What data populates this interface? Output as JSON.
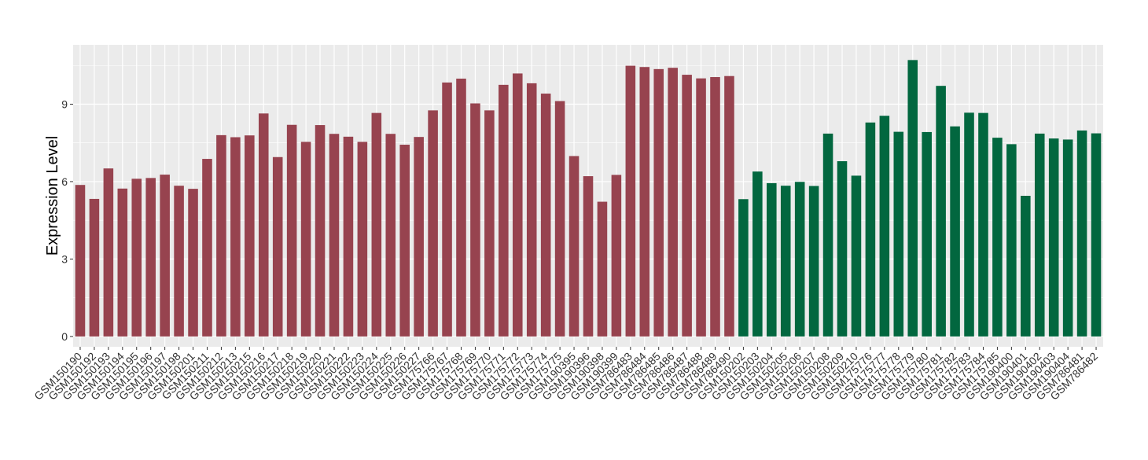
{
  "chart_data": {
    "type": "bar",
    "title": "",
    "xlabel": "",
    "ylabel": "Expression Level",
    "ylim": [
      -0.4,
      11.3
    ],
    "yticks": [
      0,
      3,
      6,
      9
    ],
    "grid": true,
    "legend": "none",
    "colors": {
      "group1": "#97434F",
      "group2": "#02673F",
      "panel": "#EBEBEB",
      "grid": "#FFFFFF"
    },
    "categories": [
      "GSM150190",
      "GSM150192",
      "GSM150193",
      "GSM150194",
      "GSM150195",
      "GSM150196",
      "GSM150197",
      "GSM150198",
      "GSM150201",
      "GSM150211",
      "GSM150212",
      "GSM150213",
      "GSM150215",
      "GSM150216",
      "GSM150217",
      "GSM150218",
      "GSM150219",
      "GSM150220",
      "GSM150221",
      "GSM150222",
      "GSM150223",
      "GSM150224",
      "GSM150225",
      "GSM150226",
      "GSM150227",
      "GSM175766",
      "GSM175767",
      "GSM175768",
      "GSM175769",
      "GSM175770",
      "GSM175771",
      "GSM175772",
      "GSM175773",
      "GSM175774",
      "GSM175775",
      "GSM190395",
      "GSM190396",
      "GSM190398",
      "GSM190399",
      "GSM786483",
      "GSM786484",
      "GSM786485",
      "GSM786486",
      "GSM786487",
      "GSM786488",
      "GSM786489",
      "GSM786490",
      "GSM150202",
      "GSM150203",
      "GSM150204",
      "GSM150205",
      "GSM150206",
      "GSM150207",
      "GSM150208",
      "GSM150209",
      "GSM150210",
      "GSM175776",
      "GSM175777",
      "GSM175778",
      "GSM175779",
      "GSM175780",
      "GSM175781",
      "GSM175782",
      "GSM175783",
      "GSM175784",
      "GSM175785",
      "GSM190400",
      "GSM190401",
      "GSM190402",
      "GSM190403",
      "GSM190404",
      "GSM786481",
      "GSM786482"
    ],
    "values": [
      5.87,
      5.33,
      6.51,
      5.73,
      6.11,
      6.14,
      6.27,
      5.84,
      5.72,
      6.88,
      7.8,
      7.72,
      7.79,
      8.64,
      6.95,
      8.2,
      7.54,
      8.19,
      7.85,
      7.74,
      7.54,
      8.66,
      7.85,
      7.43,
      7.73,
      8.76,
      9.84,
      9.99,
      9.03,
      8.76,
      9.75,
      10.19,
      9.81,
      9.41,
      9.12,
      6.99,
      6.21,
      5.22,
      6.26,
      10.49,
      10.44,
      10.36,
      10.41,
      10.14,
      10.0,
      10.05,
      10.09,
      5.32,
      6.39,
      5.94,
      5.84,
      5.99,
      5.83,
      7.86,
      6.79,
      6.23,
      8.29,
      8.55,
      7.93,
      10.71,
      7.92,
      9.71,
      8.14,
      8.67,
      8.66,
      7.7,
      7.45,
      5.45,
      7.86,
      7.67,
      7.63,
      7.98,
      7.87
    ],
    "groups": [
      "group1",
      "group1",
      "group1",
      "group1",
      "group1",
      "group1",
      "group1",
      "group1",
      "group1",
      "group1",
      "group1",
      "group1",
      "group1",
      "group1",
      "group1",
      "group1",
      "group1",
      "group1",
      "group1",
      "group1",
      "group1",
      "group1",
      "group1",
      "group1",
      "group1",
      "group1",
      "group1",
      "group1",
      "group1",
      "group1",
      "group1",
      "group1",
      "group1",
      "group1",
      "group1",
      "group1",
      "group1",
      "group1",
      "group1",
      "group1",
      "group1",
      "group1",
      "group1",
      "group1",
      "group1",
      "group1",
      "group1",
      "group2",
      "group2",
      "group2",
      "group2",
      "group2",
      "group2",
      "group2",
      "group2",
      "group2",
      "group2",
      "group2",
      "group2",
      "group2",
      "group2",
      "group2",
      "group2",
      "group2",
      "group2",
      "group2",
      "group2",
      "group2",
      "group2",
      "group2",
      "group2",
      "group2",
      "group2"
    ]
  }
}
